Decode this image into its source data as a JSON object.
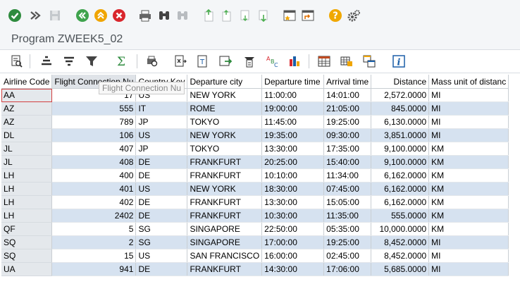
{
  "window": {
    "title": "Program ZWEEK5_02"
  },
  "system_toolbar": {
    "icons": [
      "enter-icon",
      "command-field-icon",
      "save-icon",
      "back-icon",
      "exit-icon",
      "cancel-icon",
      "print-icon",
      "find-icon",
      "find-next-icon",
      "first-page-icon",
      "previous-page-icon",
      "next-page-icon",
      "last-page-icon",
      "create-session-icon",
      "shortcut-icon",
      "help-icon",
      "settings-icon"
    ]
  },
  "alv_toolbar": {
    "icons": [
      "details-icon",
      "sort-ascending-icon",
      "sort-descending-icon",
      "filter-icon",
      "sum-icon",
      "print-preview-icon",
      "export-icon",
      "word-processing-icon",
      "abc-analysis-icon",
      "graphic-icon",
      "layout-icon",
      "save-layout-icon",
      "choose-layout-icon",
      "info-icon"
    ]
  },
  "grid": {
    "columns": [
      {
        "label": "Airline Code",
        "align": "left"
      },
      {
        "label": "Flight Connection Nu",
        "align": "left"
      },
      {
        "label": "Country Key",
        "align": "left"
      },
      {
        "label": "Departure city",
        "align": "left"
      },
      {
        "label": "Departure time",
        "align": "left"
      },
      {
        "label": "Arrival time",
        "align": "left"
      },
      {
        "label": "Distance",
        "align": "right"
      },
      {
        "label": "Mass unit of distanc",
        "align": "left"
      }
    ],
    "rows": [
      [
        "AA",
        "17",
        "US",
        "NEW YORK",
        "11:00:00",
        "14:01:00",
        "2,572.0000",
        "MI"
      ],
      [
        "AZ",
        "555",
        "IT",
        "ROME",
        "19:00:00",
        "21:05:00",
        "845.0000",
        "MI"
      ],
      [
        "AZ",
        "789",
        "JP",
        "TOKYO",
        "11:45:00",
        "19:25:00",
        "6,130.0000",
        "MI"
      ],
      [
        "DL",
        "106",
        "US",
        "NEW YORK",
        "19:35:00",
        "09:30:00",
        "3,851.0000",
        "MI"
      ],
      [
        "JL",
        "407",
        "JP",
        "TOKYO",
        "13:30:00",
        "17:35:00",
        "9,100.0000",
        "KM"
      ],
      [
        "JL",
        "408",
        "DE",
        "FRANKFURT",
        "20:25:00",
        "15:40:00",
        "9,100.0000",
        "KM"
      ],
      [
        "LH",
        "400",
        "DE",
        "FRANKFURT",
        "10:10:00",
        "11:34:00",
        "6,162.0000",
        "KM"
      ],
      [
        "LH",
        "401",
        "US",
        "NEW YORK",
        "18:30:00",
        "07:45:00",
        "6,162.0000",
        "KM"
      ],
      [
        "LH",
        "402",
        "DE",
        "FRANKFURT",
        "13:30:00",
        "15:05:00",
        "6,162.0000",
        "KM"
      ],
      [
        "LH",
        "2402",
        "DE",
        "FRANKFURT",
        "10:30:00",
        "11:35:00",
        "555.0000",
        "KM"
      ],
      [
        "QF",
        "5",
        "SG",
        "SINGAPORE",
        "22:50:00",
        "05:35:00",
        "10,000.0000",
        "KM"
      ],
      [
        "SQ",
        "2",
        "SG",
        "SINGAPORE",
        "17:00:00",
        "19:25:00",
        "8,452.0000",
        "MI"
      ],
      [
        "SQ",
        "15",
        "US",
        "SAN FRANCISCO",
        "16:00:00",
        "02:45:00",
        "8,452.0000",
        "MI"
      ],
      [
        "UA",
        "941",
        "DE",
        "FRANKFURT",
        "14:30:00",
        "17:06:00",
        "5,685.0000",
        "MI"
      ]
    ]
  },
  "tooltip": {
    "text": "Flight Connection Nu"
  },
  "colors": {
    "accent_green": "#2e8b3e",
    "back_green": "#3fa34d",
    "exit_orange": "#f0a500",
    "cancel_red": "#d9262c",
    "help_yellow": "#f0a800",
    "stripe_blue": "#d6e2f0"
  }
}
